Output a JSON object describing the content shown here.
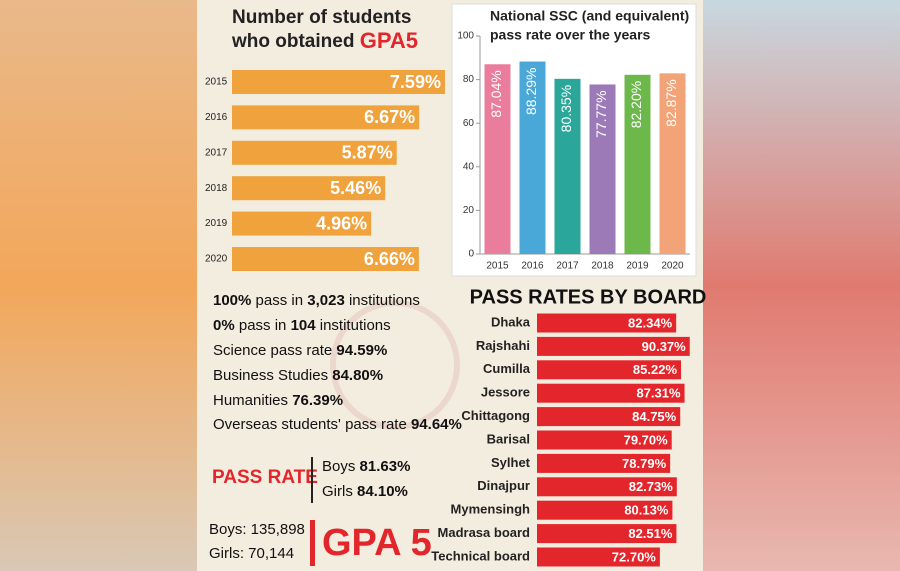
{
  "chart_data": [
    {
      "type": "hbar",
      "title": "Number of students",
      "title_line2": "who obtained",
      "title_highlight": "GPA5",
      "categories": [
        "2015",
        "2016",
        "2017",
        "2018",
        "2019",
        "2020"
      ],
      "values": [
        7.59,
        6.67,
        5.87,
        5.46,
        4.96,
        6.66
      ],
      "value_labels": [
        "7.59%",
        "6.67%",
        "5.87%",
        "5.46%",
        "4.96%",
        "6.66%"
      ],
      "color": "#f0a23c"
    },
    {
      "type": "bar",
      "title": "National SSC (and equivalent)",
      "title_line2": "pass rate over the years",
      "categories": [
        "2015",
        "2016",
        "2017",
        "2018",
        "2019",
        "2020"
      ],
      "values": [
        87.04,
        88.29,
        80.35,
        77.77,
        82.2,
        82.87
      ],
      "value_labels": [
        "87.04%",
        "88.29%",
        "80.35%",
        "77.77%",
        "82.20%",
        "82.87%"
      ],
      "colors": [
        "#ea7d9c",
        "#4aa8d8",
        "#2aa69a",
        "#9c7ab8",
        "#6cb84a",
        "#f2a378"
      ],
      "ylim": [
        0,
        100
      ],
      "yticks": [
        0,
        20,
        40,
        60,
        80,
        100
      ]
    },
    {
      "type": "hbar",
      "title": "PASS RATES BY BOARD",
      "categories": [
        "Dhaka",
        "Rajshahi",
        "Cumilla",
        "Jessore",
        "Chittagong",
        "Barisal",
        "Sylhet",
        "Dinajpur",
        "Mymensingh",
        "Madrasa board",
        "Technical board"
      ],
      "values": [
        82.34,
        90.37,
        85.22,
        87.31,
        84.75,
        79.7,
        78.79,
        82.73,
        80.13,
        82.51,
        72.7
      ],
      "value_labels": [
        "82.34%",
        "90.37%",
        "85.22%",
        "87.31%",
        "84.75%",
        "79.70%",
        "78.79%",
        "82.73%",
        "80.13%",
        "82.51%",
        "72.70%"
      ],
      "color": "#e2262b"
    }
  ],
  "facts": [
    [
      "100%",
      " pass in ",
      "3,023",
      " institutions"
    ],
    [
      "0%",
      " pass in ",
      "104",
      " institutions"
    ],
    [
      "Science pass rate ",
      "94.59%"
    ],
    [
      "Business Studies ",
      "84.80%"
    ],
    [
      "Humanities ",
      "76.39%"
    ],
    [
      "Overseas students' pass rate ",
      "94.64%"
    ]
  ],
  "pass_rate": {
    "title": "PASS RATE",
    "boys": "Boys",
    "boys_value": "81.63%",
    "girls": "Girls",
    "girls_value": "84.10%"
  },
  "gpa5": {
    "title": "GPA 5",
    "boys": "Boys: 135,898",
    "girls": "Girls: 70,144"
  }
}
